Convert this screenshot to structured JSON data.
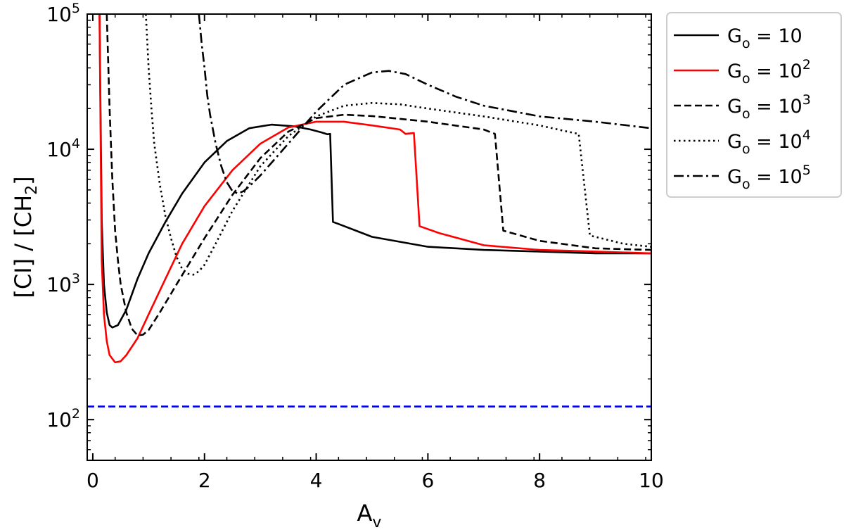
{
  "chart_data": {
    "type": "line",
    "title": "",
    "xlabel_main": "A",
    "xlabel_sub": "v",
    "ylabel_parts": [
      "[CI] / [CH",
      "2",
      "]"
    ],
    "xlim": [
      -0.1,
      10
    ],
    "ylim": [
      50,
      100000
    ],
    "yscale": "log",
    "xticks": [
      0,
      2,
      4,
      6,
      8,
      10
    ],
    "xtick_labels": [
      "0",
      "2",
      "4",
      "6",
      "8",
      "10"
    ],
    "yticks": [
      100,
      1000,
      10000,
      100000
    ],
    "ytick_labels": [
      {
        "base": "10",
        "exp": "2"
      },
      {
        "base": "10",
        "exp": "3"
      },
      {
        "base": "10",
        "exp": "4"
      },
      {
        "base": "10",
        "exp": "5"
      }
    ],
    "grid": false,
    "legend_position": "outside-right",
    "series": [
      {
        "name": "Go = 10",
        "label_base": "G",
        "label_sub": "o",
        "label_value": "10",
        "label_exp": "",
        "color": "#000000",
        "dash": "solid",
        "x": [
          0.12,
          0.16,
          0.2,
          0.25,
          0.3,
          0.35,
          0.45,
          0.6,
          0.8,
          1.0,
          1.3,
          1.6,
          2.0,
          2.4,
          2.8,
          3.2,
          3.6,
          3.9,
          4.1,
          4.2,
          4.25,
          4.3,
          4.4,
          5.0,
          6.0,
          7.0,
          8.0,
          9.0,
          10.0
        ],
        "y": [
          100000,
          3000,
          1000,
          620,
          500,
          480,
          500,
          650,
          1100,
          1700,
          2900,
          4700,
          8000,
          11500,
          14300,
          15200,
          14800,
          14000,
          13300,
          12900,
          13000,
          2900,
          2800,
          2250,
          1900,
          1800,
          1750,
          1700,
          1700
        ]
      },
      {
        "name": "Go = 10^2",
        "label_base": "G",
        "label_sub": "o",
        "label_value": "10",
        "label_exp": "2",
        "color": "#ff0000",
        "dash": "solid",
        "x": [
          0.12,
          0.16,
          0.2,
          0.25,
          0.3,
          0.4,
          0.5,
          0.6,
          0.8,
          1.0,
          1.3,
          1.6,
          2.0,
          2.5,
          3.0,
          3.5,
          4.0,
          4.5,
          5.0,
          5.5,
          5.6,
          5.75,
          5.85,
          6.2,
          7.0,
          8.0,
          9.0,
          10.0
        ],
        "y": [
          100000,
          1500,
          600,
          380,
          300,
          265,
          270,
          300,
          400,
          600,
          1100,
          2000,
          3800,
          7000,
          11000,
          14500,
          16000,
          16000,
          15000,
          14000,
          13000,
          13200,
          2700,
          2400,
          1950,
          1800,
          1750,
          1700
        ]
      },
      {
        "name": "Go = 10^3",
        "label_base": "G",
        "label_sub": "o",
        "label_value": "10",
        "label_exp": "3",
        "color": "#000000",
        "dash": "dashed",
        "x": [
          0.25,
          0.3,
          0.35,
          0.4,
          0.45,
          0.5,
          0.6,
          0.7,
          0.8,
          0.9,
          1.0,
          1.2,
          1.5,
          2.0,
          2.5,
          3.0,
          3.5,
          4.0,
          4.5,
          5.0,
          6.0,
          7.0,
          7.2,
          7.35,
          8.0,
          9.0,
          10.0
        ],
        "y": [
          100000,
          20000,
          6000,
          2500,
          1500,
          1000,
          620,
          470,
          420,
          425,
          460,
          620,
          1000,
          2200,
          4600,
          8600,
          13500,
          17000,
          18000,
          17600,
          16000,
          14000,
          13000,
          2500,
          2100,
          1850,
          1800
        ]
      },
      {
        "name": "Go = 10^4",
        "label_base": "G",
        "label_sub": "o",
        "label_value": "10",
        "label_exp": "4",
        "color": "#000000",
        "dash": "dotted",
        "x": [
          0.95,
          1.0,
          1.05,
          1.1,
          1.2,
          1.3,
          1.4,
          1.5,
          1.6,
          1.7,
          1.8,
          1.9,
          2.0,
          2.2,
          2.5,
          3.0,
          3.5,
          4.0,
          4.5,
          5.0,
          5.5,
          6.0,
          7.0,
          8.0,
          8.5,
          8.7,
          8.9,
          9.5,
          10.0
        ],
        "y": [
          100000,
          40000,
          20000,
          11000,
          5500,
          3200,
          2200,
          1600,
          1300,
          1200,
          1180,
          1250,
          1400,
          2000,
          3500,
          7500,
          12500,
          17500,
          21000,
          22000,
          21500,
          20000,
          17500,
          15000,
          13500,
          13000,
          2300,
          2000,
          1900
        ]
      },
      {
        "name": "Go = 10^5",
        "label_base": "G",
        "label_sub": "o",
        "label_value": "10",
        "label_exp": "5",
        "color": "#000000",
        "dash": "dashdot",
        "x": [
          1.9,
          1.95,
          2.0,
          2.05,
          2.1,
          2.2,
          2.3,
          2.4,
          2.5,
          2.6,
          2.7,
          2.8,
          3.0,
          3.5,
          4.0,
          4.5,
          5.0,
          5.3,
          5.6,
          6.0,
          6.5,
          7.0,
          8.0,
          9.0,
          10.0
        ],
        "y": [
          100000,
          60000,
          40000,
          25000,
          18000,
          11000,
          7500,
          5700,
          4900,
          4700,
          4900,
          5300,
          6400,
          11000,
          19000,
          30000,
          37000,
          38000,
          36000,
          30000,
          24500,
          21000,
          17500,
          16000,
          14300
        ]
      },
      {
        "name": "reference line",
        "label_base": "",
        "label_sub": "",
        "label_value": "",
        "label_exp": "",
        "color": "#0000ee",
        "dash": "dashed",
        "x": [
          -0.1,
          10.0
        ],
        "y": [
          125,
          125
        ]
      }
    ]
  }
}
